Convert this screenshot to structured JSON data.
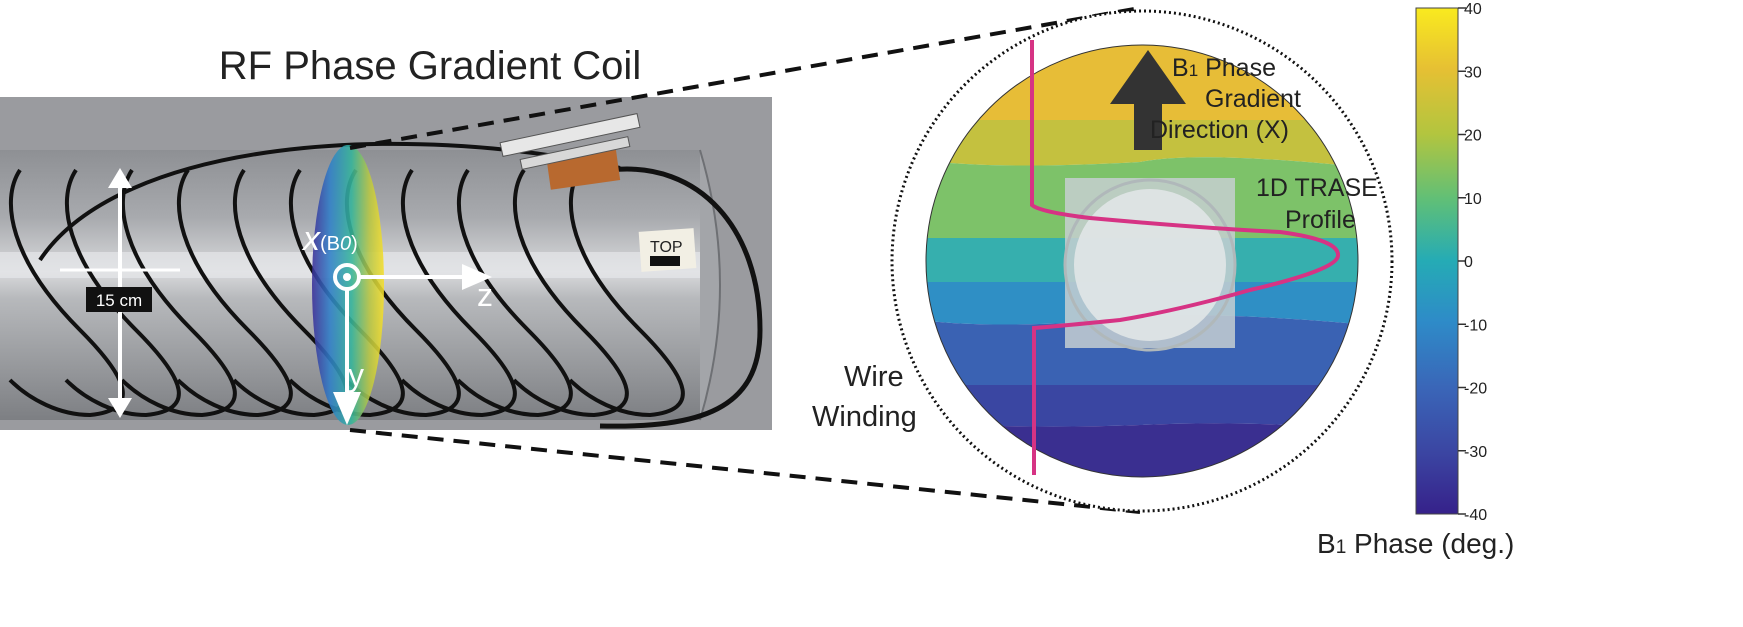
{
  "title": "RF Phase Gradient Coil",
  "photo": {
    "scale_label": "15 cm",
    "axis_x_label": "x",
    "axis_x_sub": "(B",
    "axis_x_sub_num": "0",
    "axis_x_close": ")",
    "axis_z_label": "z",
    "axis_y_label": "y",
    "tape_label": "TOP"
  },
  "phase_map": {
    "arrow_label_line1_pre": "B",
    "arrow_label_line1_sub": "1",
    "arrow_label_line1_post": " Phase",
    "arrow_label_line2": "Gradient",
    "arrow_label_line3": "Direction (X)",
    "profile_label_line1": "1D TRASE",
    "profile_label_line2": "Profile",
    "wire_label_line1": "Wire",
    "wire_label_line2": "Winding",
    "profile_color": "#d63384"
  },
  "colorbar": {
    "ticks": [
      "40",
      "30",
      "20",
      "10",
      "0",
      "-10",
      "-20",
      "-30",
      "-40"
    ],
    "label_pre": "B",
    "label_sub": "1",
    "label_post": " Phase (deg.)",
    "colors": [
      "#f9e721",
      "#e2b93a",
      "#a6c845",
      "#5fbf7a",
      "#28a7b4",
      "#2f86c5",
      "#3b5db0",
      "#3b3f9c",
      "#3b1f88"
    ]
  }
}
